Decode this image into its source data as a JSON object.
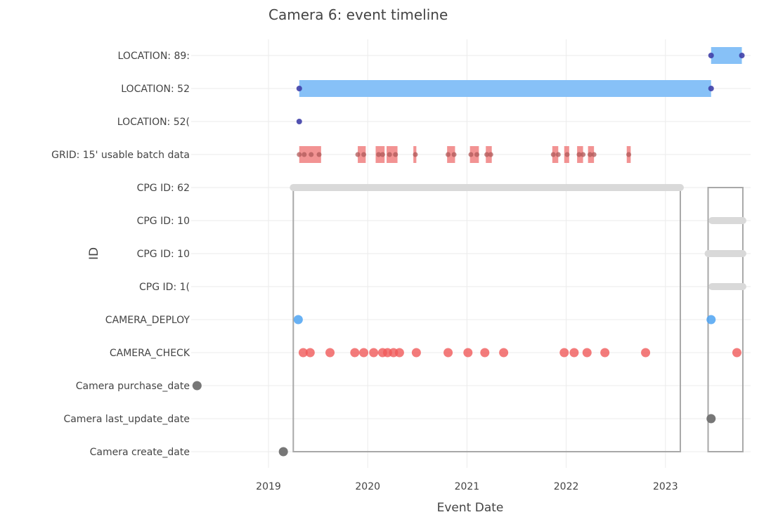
{
  "chart_data": {
    "type": "timeline",
    "title": "Camera 6:        event timeline",
    "xlabel": "Event Date",
    "ylabel": "ID",
    "xlim": [
      2018.28,
      2023.85
    ],
    "x_ticks": [
      2019,
      2020,
      2021,
      2022,
      2023
    ],
    "grid": true,
    "categories": [
      "LOCATION: 89:",
      "LOCATION: 52",
      "LOCATION: 52(",
      "GRID: 15'        usable batch data",
      "CPG ID: 62",
      "CPG ID: 10",
      "CPG ID: 10",
      "CPG ID: 1(",
      "CAMERA_DEPLOY",
      "CAMERA_CHECK",
      "Camera purchase_date",
      "Camera last_update_date",
      "Camera create_date"
    ],
    "colors": {
      "location_bar": "#87c1f7",
      "location_point": "#3f3fa8",
      "grid_bar": "#f08080",
      "grid_point": "#b05a5a",
      "cpg_bar": "#d9d9d9",
      "deploy_point": "#4da3f2",
      "check_point": "#f05a5a",
      "camera_point": "#707070",
      "deployment_box": "#a8a8a8",
      "gridline": "#ebebeb"
    },
    "ranges": [
      {
        "category": 0,
        "start": 2023.46,
        "end": 2023.77,
        "style": "location"
      },
      {
        "category": 1,
        "start": 2019.31,
        "end": 2023.46,
        "style": "location"
      },
      {
        "category": 3,
        "start": 2019.31,
        "end": 2019.53,
        "style": "grid"
      },
      {
        "category": 3,
        "start": 2019.9,
        "end": 2019.98,
        "style": "grid"
      },
      {
        "category": 3,
        "start": 2020.08,
        "end": 2020.17,
        "style": "grid"
      },
      {
        "category": 3,
        "start": 2020.19,
        "end": 2020.3,
        "style": "grid"
      },
      {
        "category": 3,
        "start": 2020.46,
        "end": 2020.49,
        "style": "grid"
      },
      {
        "category": 3,
        "start": 2020.8,
        "end": 2020.88,
        "style": "grid"
      },
      {
        "category": 3,
        "start": 2021.03,
        "end": 2021.12,
        "style": "grid"
      },
      {
        "category": 3,
        "start": 2021.19,
        "end": 2021.25,
        "style": "grid"
      },
      {
        "category": 3,
        "start": 2021.86,
        "end": 2021.92,
        "style": "grid"
      },
      {
        "category": 3,
        "start": 2021.98,
        "end": 2022.03,
        "style": "grid"
      },
      {
        "category": 3,
        "start": 2022.11,
        "end": 2022.17,
        "style": "grid"
      },
      {
        "category": 3,
        "start": 2022.22,
        "end": 2022.28,
        "style": "grid"
      },
      {
        "category": 3,
        "start": 2022.61,
        "end": 2022.65,
        "style": "grid"
      },
      {
        "category": 4,
        "start": 2019.25,
        "end": 2023.15,
        "style": "cpg"
      },
      {
        "category": 5,
        "start": 2023.47,
        "end": 2023.78,
        "style": "cpg"
      },
      {
        "category": 6,
        "start": 2023.43,
        "end": 2023.78,
        "style": "cpg"
      },
      {
        "category": 7,
        "start": 2023.47,
        "end": 2023.78,
        "style": "cpg"
      }
    ],
    "events": [
      {
        "category": 0,
        "x": [
          2023.46,
          2023.77
        ],
        "style": "location"
      },
      {
        "category": 1,
        "x": [
          2019.31,
          2023.46
        ],
        "style": "location"
      },
      {
        "category": 2,
        "x": [
          2019.31
        ],
        "style": "location"
      },
      {
        "category": 3,
        "x": [
          2019.31,
          2019.36,
          2019.43,
          2019.51,
          2019.9,
          2019.96,
          2020.11,
          2020.15,
          2020.22,
          2020.28,
          2020.48,
          2020.81,
          2020.87,
          2021.04,
          2021.1,
          2021.2,
          2021.24,
          2021.87,
          2021.92,
          2022.01,
          2022.13,
          2022.17,
          2022.24,
          2022.28,
          2022.63
        ],
        "style": "grid"
      },
      {
        "category": 8,
        "x": [
          2019.3,
          2023.46
        ],
        "style": "deploy"
      },
      {
        "category": 9,
        "x": [
          2019.35,
          2019.42,
          2019.62,
          2019.87,
          2019.96,
          2020.06,
          2020.15,
          2020.2,
          2020.26,
          2020.32,
          2020.49,
          2020.81,
          2021.01,
          2021.18,
          2021.37,
          2021.98,
          2022.08,
          2022.21,
          2022.39,
          2022.8,
          2023.72
        ],
        "style": "check"
      },
      {
        "category": 10,
        "x": [
          2018.28
        ],
        "style": "camera"
      },
      {
        "category": 11,
        "x": [
          2023.46
        ],
        "style": "camera"
      },
      {
        "category": 12,
        "x": [
          2019.15
        ],
        "style": "camera"
      }
    ],
    "deployment_boxes": [
      {
        "start": 2019.25,
        "end": 2023.15,
        "top_category": 4,
        "bottom_category": 12
      },
      {
        "start": 2023.43,
        "end": 2023.78,
        "top_category": 4,
        "bottom_category": 12
      }
    ]
  }
}
